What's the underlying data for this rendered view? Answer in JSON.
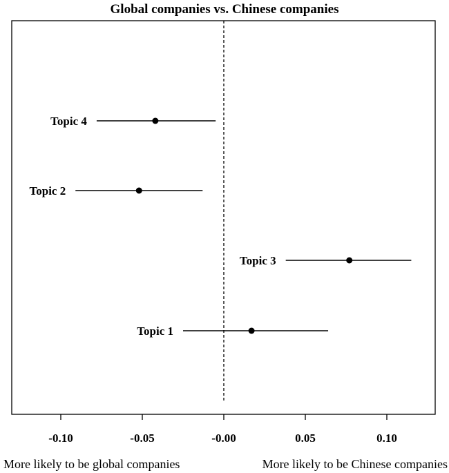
{
  "chart_data": {
    "type": "scatter",
    "subtype": "coefficient-plot",
    "title": "Global companies vs. Chinese companies",
    "x_ticks": [
      -0.1,
      -0.05,
      -0.0,
      0.05,
      0.1
    ],
    "x_tick_labels": [
      "-0.10",
      "-0.05",
      "-0.00",
      "0.05",
      "0.10"
    ],
    "xlim": [
      -0.125,
      0.13
    ],
    "reference_line": {
      "x": 0.0,
      "style": "dashed"
    },
    "grid": false,
    "x_annotations": {
      "left": "More likely to be global companies",
      "right": "More likely to be Chinese companies"
    },
    "points": [
      {
        "label": "Topic 4",
        "estimate": -0.042,
        "ci_low": -0.078,
        "ci_high": -0.005
      },
      {
        "label": "Topic 2",
        "estimate": -0.052,
        "ci_low": -0.091,
        "ci_high": -0.013
      },
      {
        "label": "Topic 3",
        "estimate": 0.077,
        "ci_low": 0.038,
        "ci_high": 0.115
      },
      {
        "label": "Topic 1",
        "estimate": 0.017,
        "ci_low": -0.025,
        "ci_high": 0.064
      }
    ]
  }
}
